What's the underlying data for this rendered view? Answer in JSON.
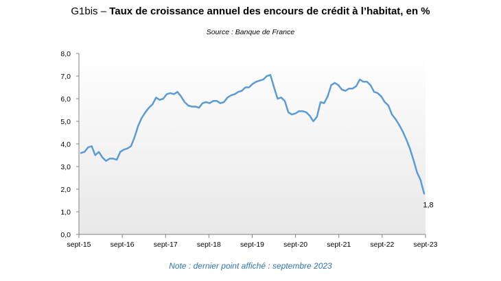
{
  "header": {
    "prefix": "G1bis – ",
    "title": "Taux de croissance annuel des encours de crédit à l’habitat, en %",
    "source": "Source : Banque de France"
  },
  "footer": {
    "note": "Note : dernier point affiché : septembre 2023"
  },
  "colors": {
    "line": "#5b9bd5",
    "gradient_top": "#ffffff",
    "gradient_bottom": "#e8e8e8"
  },
  "chart_data": {
    "type": "area",
    "title": "Taux de croissance annuel des encours de crédit à l’habitat, en %",
    "xlabel": "",
    "ylabel": "",
    "ylim": [
      0,
      8
    ],
    "yticks": [
      "0,0",
      "1,0",
      "2,0",
      "3,0",
      "4,0",
      "5,0",
      "6,0",
      "7,0",
      "8,0"
    ],
    "xticks": [
      "sept-15",
      "sept-16",
      "sept-17",
      "sept-18",
      "sept-19",
      "sept-20",
      "sept-21",
      "sept-22",
      "sept-23"
    ],
    "grid": false,
    "legend": "none",
    "last_point_label": "1,8",
    "series": [
      {
        "values": [
          3.6,
          3.65,
          3.85,
          3.9,
          3.5,
          3.65,
          3.4,
          3.25,
          3.35,
          3.35,
          3.3,
          3.65,
          3.75,
          3.8,
          3.9,
          4.3,
          4.8,
          5.15,
          5.4,
          5.6,
          5.75,
          6.05,
          5.95,
          6.0,
          6.2,
          6.25,
          6.2,
          6.3,
          6.1,
          5.85,
          5.7,
          5.65,
          5.65,
          5.6,
          5.8,
          5.85,
          5.8,
          5.9,
          5.9,
          5.8,
          5.85,
          6.05,
          6.15,
          6.2,
          6.3,
          6.35,
          6.5,
          6.5,
          6.65,
          6.75,
          6.8,
          6.85,
          7.0,
          7.05,
          6.5,
          6.0,
          6.05,
          5.9,
          5.4,
          5.3,
          5.35,
          5.45,
          5.45,
          5.4,
          5.25,
          5.0,
          5.2,
          5.85,
          5.8,
          6.1,
          6.6,
          6.7,
          6.6,
          6.4,
          6.35,
          6.45,
          6.45,
          6.55,
          6.85,
          6.75,
          6.75,
          6.6,
          6.3,
          6.25,
          6.1,
          5.85,
          5.7,
          5.3,
          5.1,
          4.85,
          4.55,
          4.2,
          3.8,
          3.3,
          2.75,
          2.4,
          1.8
        ]
      }
    ]
  }
}
